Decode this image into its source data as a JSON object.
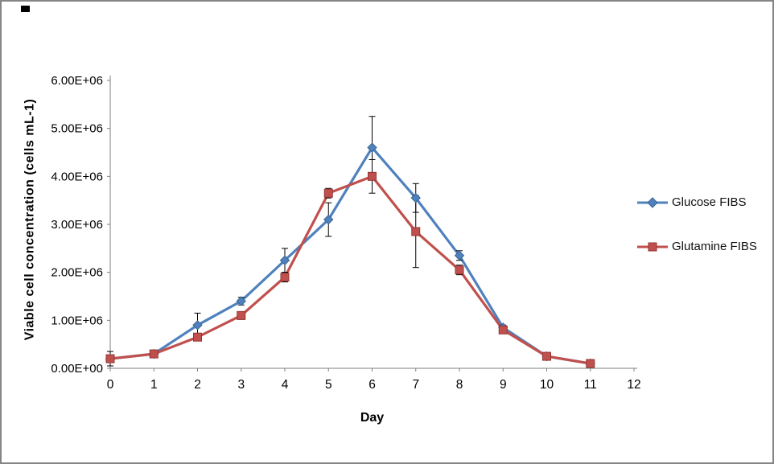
{
  "page": {
    "background": "#ffffff",
    "border_color": "#858585"
  },
  "chart_data": {
    "type": "line",
    "title": "",
    "xlabel": "Day",
    "ylabel": "Viable cell concentration (cells mL-1)",
    "x": [
      0,
      1,
      2,
      3,
      4,
      5,
      6,
      7,
      8,
      9,
      10,
      11
    ],
    "xlim": [
      0,
      12
    ],
    "ylim": [
      0,
      6000000
    ],
    "x_tick_labels": [
      "0",
      "1",
      "2",
      "3",
      "4",
      "5",
      "6",
      "7",
      "8",
      "9",
      "10",
      "11",
      "12"
    ],
    "y_tick_labels": [
      "0.00E+00",
      "1.00E+06",
      "2.00E+06",
      "3.00E+06",
      "4.00E+06",
      "5.00E+06",
      "6.00E+06"
    ],
    "y_tick_values": [
      0,
      1000000,
      2000000,
      3000000,
      4000000,
      5000000,
      6000000
    ],
    "grid": false,
    "legend_position": "right",
    "axis_color": "#7F7F7F",
    "error_bar_color": "#000000",
    "series": [
      {
        "name": "Glucose FIBS",
        "color": "#4F81BD",
        "marker": "diamond",
        "values": [
          200000,
          300000,
          900000,
          1400000,
          2250000,
          3100000,
          4600000,
          3550000,
          2350000,
          850000,
          250000,
          100000
        ],
        "errors": [
          150000,
          50000,
          250000,
          80000,
          250000,
          350000,
          650000,
          300000,
          100000,
          50000,
          30000,
          20000
        ]
      },
      {
        "name": "Glutamine FIBS",
        "color": "#C0504D",
        "marker": "square",
        "values": [
          200000,
          300000,
          650000,
          1100000,
          1900000,
          3650000,
          4000000,
          2850000,
          2050000,
          800000,
          250000,
          100000
        ],
        "errors": [
          50000,
          40000,
          60000,
          80000,
          100000,
          100000,
          350000,
          750000,
          100000,
          50000,
          30000,
          20000
        ]
      }
    ]
  }
}
